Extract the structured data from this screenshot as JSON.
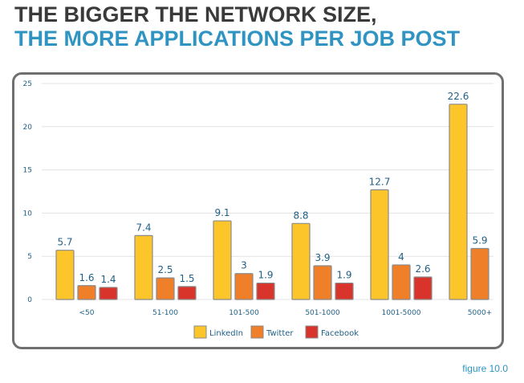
{
  "title": {
    "line1": "THE BIGGER THE NETWORK SIZE,",
    "line2": "THE MORE APPLICATIONS PER JOB POST"
  },
  "figure_label": "figure 10.0",
  "colors": {
    "title_dark": "#3a3a3a",
    "title_blue": "#2f94c2",
    "LinkedIn": "#fcc62a",
    "Twitter": "#f07f2a",
    "Facebook": "#d9342b",
    "data_label": "#1f5f86"
  },
  "chart_data": {
    "type": "bar",
    "title": "THE BIGGER THE NETWORK SIZE, THE MORE APPLICATIONS PER JOB POST",
    "xlabel": "",
    "ylabel": "",
    "ylim": [
      0,
      25
    ],
    "yticks": [
      "0",
      "5",
      "10",
      "15",
      "20",
      "25"
    ],
    "grid": true,
    "legend_position": "bottom-center",
    "categories": [
      "<50",
      "51-100",
      "101-500",
      "501-1000",
      "1001-5000",
      "5000+"
    ],
    "series": [
      {
        "name": "LinkedIn",
        "values": [
          5.7,
          7.4,
          9.1,
          8.8,
          12.7,
          22.6
        ],
        "labels": [
          "5.7",
          "7.4",
          "9.1",
          "8.8",
          "12.7",
          "22.6"
        ]
      },
      {
        "name": "Twitter",
        "values": [
          1.6,
          2.5,
          3,
          3.9,
          4,
          5.9
        ],
        "labels": [
          "1.6",
          "2.5",
          "3",
          "3.9",
          "4",
          "5.9"
        ]
      },
      {
        "name": "Facebook",
        "values": [
          1.4,
          1.5,
          1.9,
          1.9,
          2.6,
          null
        ],
        "labels": [
          "1.4",
          "1.5",
          "1.9",
          "1.9",
          "2.6",
          ""
        ]
      }
    ]
  }
}
